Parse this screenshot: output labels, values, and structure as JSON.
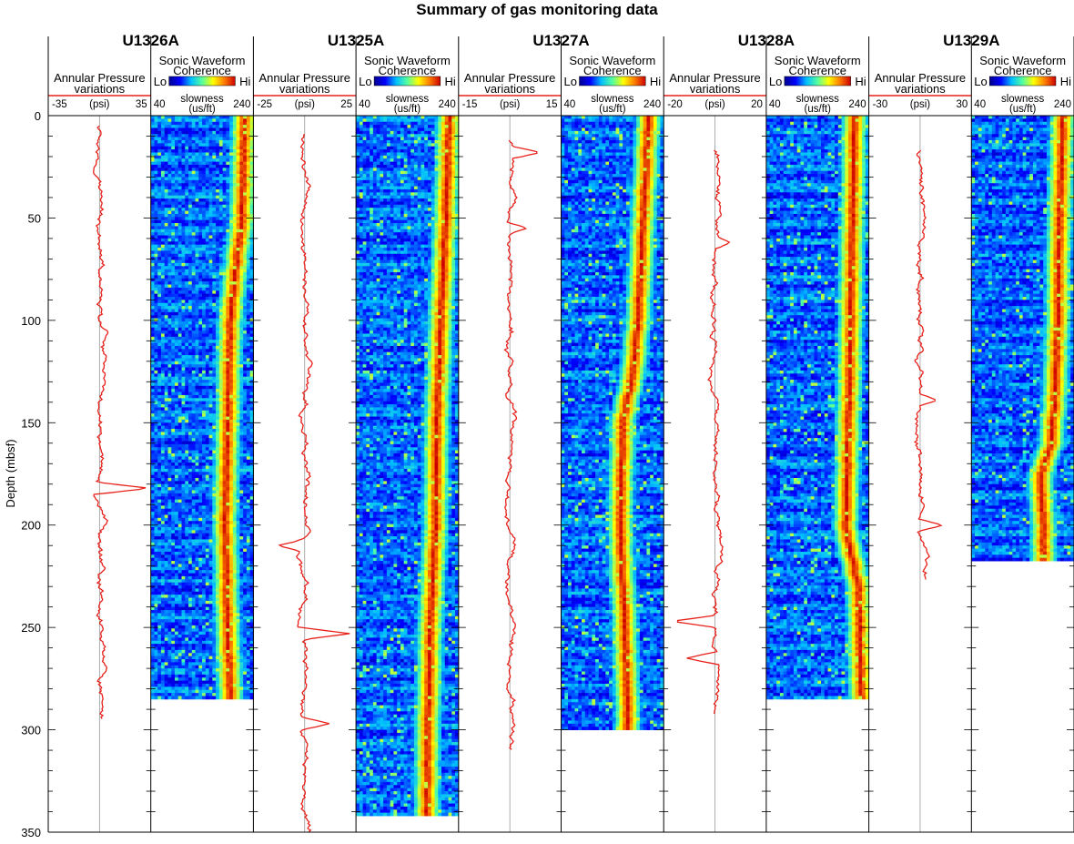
{
  "chart_data": {
    "type": "well-log",
    "title": "Summary of gas monitoring data",
    "ylabel": "Depth (mbsf)",
    "ylim": [
      0,
      350
    ],
    "y_ticks": [
      "0",
      "50",
      "100",
      "150",
      "200",
      "250",
      "300",
      "350"
    ],
    "colors": {
      "pressure_curve": "#e8201a",
      "colormap": [
        "#00008f",
        "#0000ff",
        "#00bfff",
        "#55ff9f",
        "#ffff00",
        "#ff7f00",
        "#cc0000"
      ]
    },
    "track_labels": {
      "pressure_title": "Annular Pressure variations",
      "pressure_unit": "(psi)",
      "sonic_title": "Sonic Waveform Coherence",
      "sonic_lo": "Lo",
      "sonic_hi": "Hi",
      "sonic_unit": "slowness (us/ft)",
      "sonic_min": "40",
      "sonic_max": "240"
    },
    "wells": [
      {
        "name": "U1326A",
        "pressure_range": [
          -35,
          35
        ],
        "pressure_min_label": "-35",
        "pressure_max_label": "35",
        "pressure_depth_range": [
          5,
          295
        ],
        "pressure_spikes": [
          {
            "depth": 182,
            "value": 34
          },
          {
            "depth": 106,
            "value": 6
          }
        ],
        "sonic_bottom_depth": 284,
        "sonic_band": [
          [
            0,
            222
          ],
          [
            50,
            218
          ],
          [
            85,
            200
          ],
          [
            100,
            195
          ],
          [
            150,
            190
          ],
          [
            200,
            185
          ],
          [
            250,
            190
          ],
          [
            284,
            195
          ]
        ]
      },
      {
        "name": "U1325A",
        "pressure_range": [
          -25,
          25
        ],
        "pressure_min_label": "-25",
        "pressure_max_label": "25",
        "pressure_depth_range": [
          9,
          350
        ],
        "pressure_spikes": [
          {
            "depth": 253,
            "value": 22
          },
          {
            "depth": 297,
            "value": 12
          },
          {
            "depth": 210,
            "value": -13
          }
        ],
        "sonic_bottom_depth": 342,
        "sonic_band": [
          [
            0,
            222
          ],
          [
            50,
            215
          ],
          [
            100,
            205
          ],
          [
            150,
            198
          ],
          [
            200,
            195
          ],
          [
            250,
            185
          ],
          [
            300,
            180
          ],
          [
            342,
            178
          ]
        ]
      },
      {
        "name": "U1327A",
        "pressure_range": [
          -15,
          15
        ],
        "pressure_min_label": "-15",
        "pressure_max_label": "15",
        "pressure_depth_range": [
          12,
          310
        ],
        "pressure_spikes": [
          {
            "depth": 55,
            "value": 5
          },
          {
            "depth": 18,
            "value": 9
          }
        ],
        "sonic_bottom_depth": 300,
        "sonic_band": [
          [
            0,
            210
          ],
          [
            50,
            200
          ],
          [
            100,
            190
          ],
          [
            125,
            180
          ],
          [
            150,
            160
          ],
          [
            200,
            155
          ],
          [
            250,
            165
          ],
          [
            300,
            170
          ]
        ]
      },
      {
        "name": "U1328A",
        "pressure_range": [
          -20,
          20
        ],
        "pressure_min_label": "-20",
        "pressure_max_label": "20",
        "pressure_depth_range": [
          17,
          293
        ],
        "pressure_spikes": [
          {
            "depth": 62,
            "value": 6
          },
          {
            "depth": 247,
            "value": -17
          },
          {
            "depth": 265,
            "value": -11
          }
        ],
        "sonic_bottom_depth": 284,
        "sonic_band": [
          [
            0,
            212
          ],
          [
            50,
            208
          ],
          [
            100,
            205
          ],
          [
            150,
            200
          ],
          [
            200,
            195
          ],
          [
            230,
            220
          ],
          [
            284,
            225
          ]
        ]
      },
      {
        "name": "U1329A",
        "pressure_range": [
          -30,
          30
        ],
        "pressure_min_label": "-30",
        "pressure_max_label": "30",
        "pressure_depth_range": [
          17,
          227
        ],
        "pressure_spikes": [
          {
            "depth": 139,
            "value": 10
          },
          {
            "depth": 200,
            "value": 13
          }
        ],
        "sonic_bottom_depth": 217,
        "sonic_band": [
          [
            0,
            218
          ],
          [
            50,
            212
          ],
          [
            100,
            208
          ],
          [
            130,
            205
          ],
          [
            160,
            195
          ],
          [
            175,
            175
          ],
          [
            200,
            180
          ],
          [
            217,
            180
          ]
        ]
      }
    ]
  }
}
